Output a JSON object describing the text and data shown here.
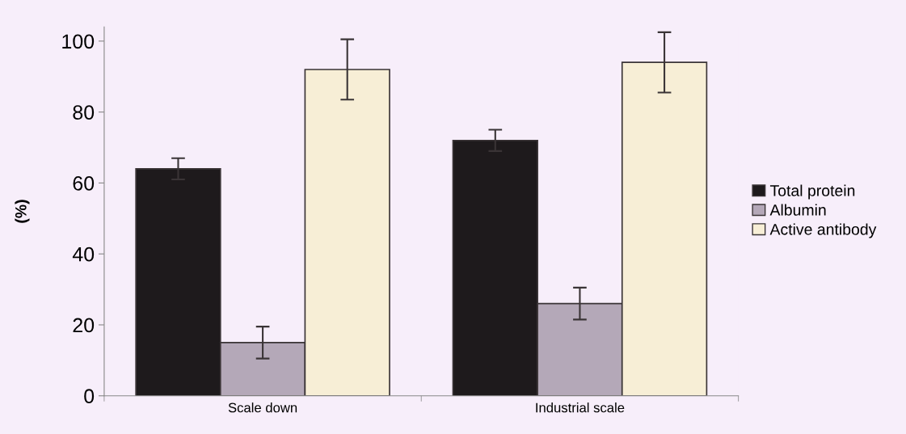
{
  "chart_data": {
    "type": "bar",
    "ylabel": "(%)",
    "categories": [
      "Scale down",
      "Industrial scale"
    ],
    "series": [
      {
        "name": "Total protein",
        "color": "#1e1a1c",
        "values": [
          64,
          72
        ],
        "errors": [
          3,
          3
        ]
      },
      {
        "name": "Albumin",
        "color": "#b4a8b8",
        "values": [
          15,
          26
        ],
        "errors": [
          4.5,
          4.5
        ]
      },
      {
        "name": "Active antibody",
        "color": "#f7eed6",
        "values": [
          92,
          94
        ],
        "errors": [
          8.5,
          8.5
        ]
      }
    ],
    "ylim": [
      0,
      104
    ],
    "yticks": [
      0,
      20,
      40,
      60,
      80,
      100
    ],
    "grid": false,
    "legend": "right"
  }
}
